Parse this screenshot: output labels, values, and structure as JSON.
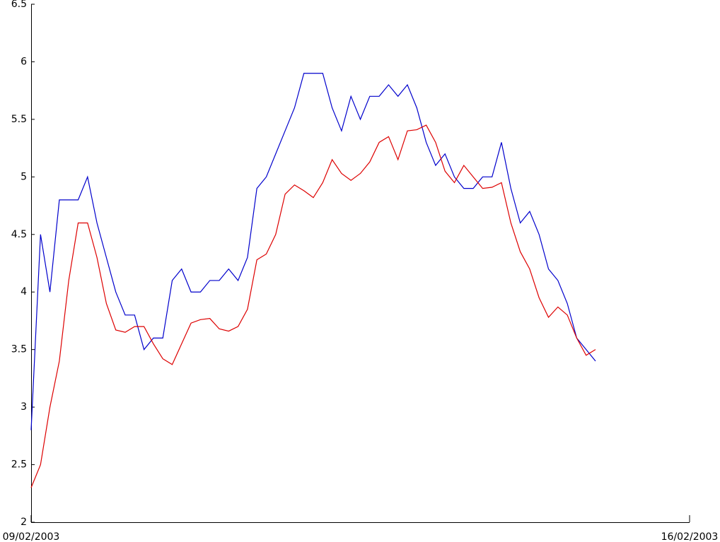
{
  "chart_data": {
    "type": "line",
    "x": [
      0,
      0.1,
      0.2,
      0.3,
      0.4,
      0.5,
      0.6,
      0.7,
      0.8,
      0.9,
      1.0,
      1.1,
      1.2,
      1.3,
      1.4,
      1.5,
      1.6,
      1.7,
      1.8,
      1.9,
      2.0,
      2.1,
      2.2,
      2.3,
      2.4,
      2.5,
      2.6,
      2.7,
      2.8,
      2.9,
      3.0,
      3.1,
      3.2,
      3.3,
      3.4,
      3.5,
      3.6,
      3.7,
      3.8,
      3.9,
      4.0,
      4.1,
      4.2,
      4.3,
      4.4,
      4.5,
      4.6,
      4.7,
      4.8,
      4.9,
      5.0,
      5.1,
      5.2,
      5.3,
      5.4,
      5.5,
      5.6,
      5.7,
      5.8,
      5.9,
      6.0
    ],
    "series": [
      {
        "color": "#0000cc",
        "values": [
          2.8,
          4.5,
          4.0,
          4.8,
          4.8,
          4.8,
          5.0,
          4.6,
          4.3,
          4.0,
          3.8,
          3.8,
          3.5,
          3.6,
          3.6,
          4.1,
          4.2,
          4.0,
          4.0,
          4.1,
          4.1,
          4.2,
          4.1,
          4.3,
          4.9,
          5.0,
          5.2,
          5.4,
          5.6,
          5.9,
          5.9,
          5.9,
          5.6,
          5.4,
          5.7,
          5.5,
          5.7,
          5.7,
          5.8,
          5.7,
          5.8,
          5.6,
          5.3,
          5.1,
          5.2,
          5.0,
          4.9,
          4.9,
          5.0,
          5.0,
          5.3,
          4.9,
          4.6,
          4.7,
          4.5,
          4.2,
          4.1,
          3.9,
          3.6,
          3.5,
          3.4
        ]
      },
      {
        "color": "#dd0000",
        "values": [
          2.3,
          2.5,
          3.0,
          3.4,
          4.1,
          4.6,
          4.6,
          4.3,
          3.9,
          3.67,
          3.65,
          3.7,
          3.7,
          3.55,
          3.42,
          3.37,
          3.55,
          3.73,
          3.76,
          3.77,
          3.68,
          3.66,
          3.7,
          3.85,
          4.28,
          4.33,
          4.5,
          4.85,
          4.93,
          4.88,
          4.82,
          4.95,
          5.15,
          5.03,
          4.97,
          5.03,
          5.13,
          5.3,
          5.35,
          5.15,
          5.4,
          5.41,
          5.45,
          5.3,
          5.05,
          4.95,
          5.1,
          5.0,
          4.9,
          4.91,
          4.95,
          4.6,
          4.35,
          4.2,
          3.95,
          3.78,
          3.87,
          3.8,
          3.6,
          3.45,
          3.5
        ]
      }
    ],
    "xlim": [
      0,
      7
    ],
    "xticks": [
      {
        "value": 0,
        "label": "09/02/2003"
      },
      {
        "value": 7,
        "label": "16/02/2003"
      }
    ],
    "ylim": [
      2,
      6.5
    ],
    "yticks": [
      2,
      2.5,
      3,
      3.5,
      4,
      4.5,
      5,
      5.5,
      6,
      6.5
    ],
    "grid": false
  }
}
